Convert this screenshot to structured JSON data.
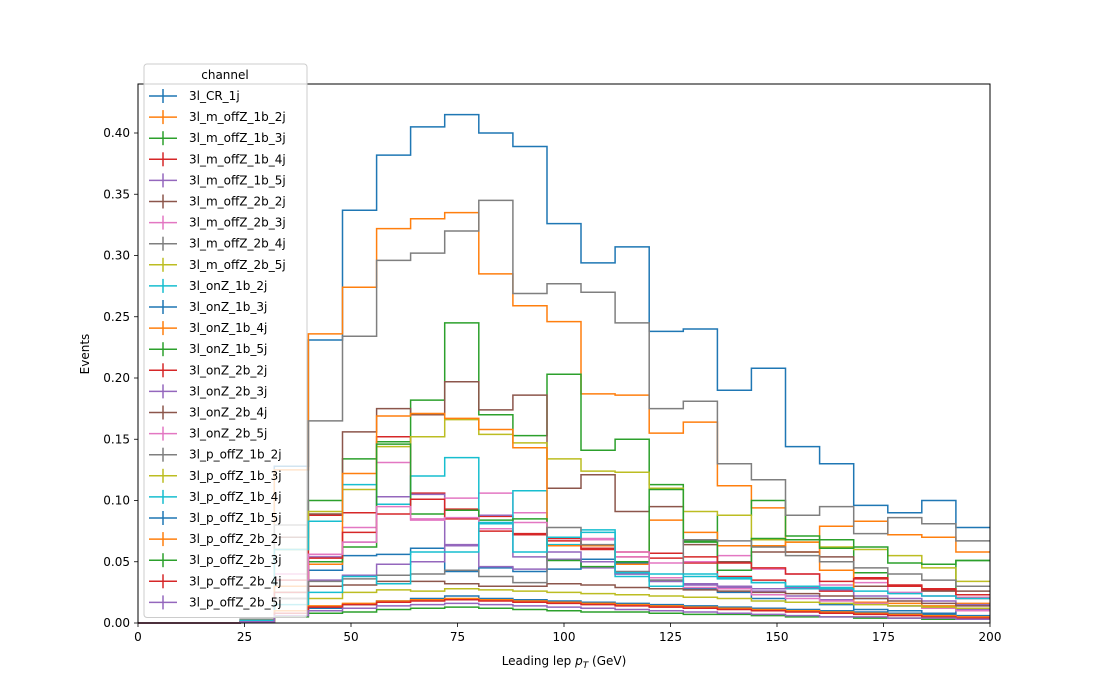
{
  "chart_data": {
    "type": "step",
    "xlabel": "Leading lep",
    "xlabel_var": "p",
    "xlabel_sub": "T",
    "xlabel_unit": "(GeV)",
    "ylabel": "Events",
    "xlim": [
      0,
      200
    ],
    "ylim": [
      0,
      0.44
    ],
    "xticks": [
      0,
      25,
      50,
      75,
      100,
      125,
      150,
      175,
      200
    ],
    "yticks": [
      0.0,
      0.05,
      0.1,
      0.15,
      0.2,
      0.25,
      0.3,
      0.35,
      0.4
    ],
    "ytick_labels": [
      "0.00",
      "0.05",
      "0.10",
      "0.15",
      "0.20",
      "0.25",
      "0.30",
      "0.35",
      "0.40"
    ],
    "bin_edges": [
      0,
      8,
      16,
      24,
      32,
      40,
      48,
      56,
      64,
      72,
      80,
      88,
      96,
      104,
      112,
      120,
      128,
      136,
      144,
      152,
      160,
      168,
      176,
      184,
      192,
      200
    ],
    "legend_title": "channel",
    "legend_position": "upper-left",
    "series": [
      {
        "name": "3l_CR_1j",
        "color": "#1f77b4",
        "values": [
          0,
          0,
          0,
          0.003,
          0.128,
          0.231,
          0.337,
          0.382,
          0.405,
          0.415,
          0.4,
          0.389,
          0.326,
          0.294,
          0.307,
          0.238,
          0.24,
          0.19,
          0.208,
          0.144,
          0.13,
          0.096,
          0.09,
          0.1,
          0.078
        ]
      },
      {
        "name": "3l_m_offZ_1b_2j",
        "color": "#ff7f0e",
        "values": [
          0,
          0,
          0,
          0.002,
          0.125,
          0.236,
          0.274,
          0.322,
          0.33,
          0.335,
          0.285,
          0.259,
          0.246,
          0.187,
          0.186,
          0.155,
          0.164,
          0.112,
          0.094,
          0.058,
          0.079,
          0.083,
          0.072,
          0.07,
          0.058
        ]
      },
      {
        "name": "3l_m_offZ_1b_3j",
        "color": "#2ca02c",
        "values": [
          0,
          0,
          0,
          0.002,
          0.06,
          0.1,
          0.134,
          0.148,
          0.182,
          0.245,
          0.17,
          0.153,
          0.203,
          0.141,
          0.15,
          0.113,
          0.066,
          0.088,
          0.1,
          0.071,
          0.068,
          0.041,
          0.03,
          0.028,
          0.051
        ]
      },
      {
        "name": "3l_m_offZ_1b_4j",
        "color": "#d62728",
        "values": [
          0,
          0,
          0,
          0.001,
          0.035,
          0.088,
          0.09,
          0.152,
          0.106,
          0.093,
          0.087,
          0.072,
          0.067,
          0.06,
          0.054,
          0.053,
          0.049,
          0.038,
          0.035,
          0.03,
          0.026,
          0.037,
          0.031,
          0.027,
          0.023
        ]
      },
      {
        "name": "3l_m_offZ_1b_5j",
        "color": "#9467bd",
        "values": [
          0,
          0,
          0,
          0.001,
          0.03,
          0.054,
          0.066,
          0.103,
          0.105,
          0.064,
          0.088,
          0.054,
          0.052,
          0.045,
          0.04,
          0.035,
          0.031,
          0.029,
          0.026,
          0.022,
          0.019,
          0.016,
          0.014,
          0.012,
          0.011
        ]
      },
      {
        "name": "3l_m_offZ_2b_2j",
        "color": "#8c564b",
        "values": [
          0,
          0,
          0,
          0.003,
          0.07,
          0.089,
          0.156,
          0.175,
          0.17,
          0.197,
          0.174,
          0.186,
          0.11,
          0.121,
          0.091,
          0.095,
          0.064,
          0.05,
          0.058,
          0.058,
          0.054,
          0.03,
          0.03,
          0.026,
          0.026
        ]
      },
      {
        "name": "3l_m_offZ_2b_3j",
        "color": "#e377c2",
        "values": [
          0,
          0,
          0,
          0.002,
          0.04,
          0.056,
          0.078,
          0.131,
          0.085,
          0.102,
          0.106,
          0.09,
          0.069,
          0.069,
          0.054,
          0.049,
          0.05,
          0.055,
          0.044,
          0.04,
          0.031,
          0.033,
          0.025,
          0.022,
          0.021
        ]
      },
      {
        "name": "3l_m_offZ_2b_4j",
        "color": "#7f7f7f",
        "values": [
          0,
          0,
          0,
          0.003,
          0.08,
          0.165,
          0.234,
          0.296,
          0.302,
          0.32,
          0.345,
          0.269,
          0.277,
          0.27,
          0.245,
          0.175,
          0.181,
          0.13,
          0.117,
          0.088,
          0.095,
          0.073,
          0.086,
          0.081,
          0.067
        ]
      },
      {
        "name": "3l_m_offZ_2b_5j",
        "color": "#bcbd22",
        "values": [
          0,
          0,
          0,
          0.002,
          0.06,
          0.091,
          0.109,
          0.144,
          0.152,
          0.166,
          0.154,
          0.147,
          0.134,
          0.124,
          0.123,
          0.11,
          0.091,
          0.088,
          0.068,
          0.066,
          0.062,
          0.06,
          0.055,
          0.045,
          0.034
        ]
      },
      {
        "name": "3l_onZ_1b_2j",
        "color": "#17becf",
        "values": [
          0,
          0,
          0,
          0.002,
          0.06,
          0.083,
          0.113,
          0.097,
          0.12,
          0.135,
          0.081,
          0.108,
          0.064,
          0.076,
          0.038,
          0.04,
          0.038,
          0.037,
          0.033,
          0.028,
          0.029,
          0.02,
          0.014,
          0.013,
          0.015
        ]
      },
      {
        "name": "3l_onZ_1b_3j",
        "color": "#1f77b4",
        "values": [
          0,
          0,
          0,
          0.001,
          0.03,
          0.043,
          0.055,
          0.056,
          0.061,
          0.042,
          0.045,
          0.042,
          0.044,
          0.052,
          0.049,
          0.034,
          0.028,
          0.025,
          0.02,
          0.017,
          0.015,
          0.011,
          0.01,
          0.008,
          0.012
        ]
      },
      {
        "name": "3l_onZ_1b_4j",
        "color": "#ff7f0e",
        "values": [
          0,
          0,
          0,
          0.001,
          0.03,
          0.048,
          0.122,
          0.169,
          0.171,
          0.167,
          0.158,
          0.143,
          0.063,
          0.063,
          0.048,
          0.084,
          0.074,
          0.063,
          0.063,
          0.066,
          0.043,
          0.017,
          0.016,
          0.014,
          0.016
        ]
      },
      {
        "name": "3l_onZ_1b_5j",
        "color": "#2ca02c",
        "values": [
          0,
          0,
          0,
          0.001,
          0.025,
          0.05,
          0.062,
          0.146,
          0.089,
          0.092,
          0.084,
          0.085,
          0.051,
          0.046,
          0.05,
          0.109,
          0.067,
          0.043,
          0.069,
          0.068,
          0.061,
          0.062,
          0.049,
          0.048,
          0.051
        ]
      },
      {
        "name": "3l_onZ_2b_2j",
        "color": "#d62728",
        "values": [
          0,
          0,
          0,
          0.001,
          0.025,
          0.053,
          0.074,
          0.089,
          0.101,
          0.085,
          0.075,
          0.073,
          0.069,
          0.061,
          0.058,
          0.057,
          0.054,
          0.049,
          0.045,
          0.04,
          0.034,
          0.036,
          0.03,
          0.028,
          0.02
        ]
      },
      {
        "name": "3l_onZ_2b_3j",
        "color": "#9467bd",
        "values": [
          0,
          0,
          0,
          0.001,
          0.02,
          0.035,
          0.039,
          0.048,
          0.05,
          0.063,
          0.046,
          0.044,
          0.058,
          0.05,
          0.04,
          0.034,
          0.032,
          0.03,
          0.028,
          0.029,
          0.027,
          0.022,
          0.02,
          0.018,
          0.015
        ]
      },
      {
        "name": "3l_onZ_2b_4j",
        "color": "#8c564b",
        "values": [
          0,
          0,
          0,
          0.001,
          0.02,
          0.03,
          0.031,
          0.034,
          0.034,
          0.032,
          0.03,
          0.03,
          0.032,
          0.031,
          0.029,
          0.028,
          0.027,
          0.026,
          0.025,
          0.024,
          0.022,
          0.02,
          0.018,
          0.016,
          0.014
        ]
      },
      {
        "name": "3l_onZ_2b_5j",
        "color": "#e377c2",
        "values": [
          0,
          0,
          0,
          0.001,
          0.01,
          0.056,
          0.066,
          0.095,
          0.084,
          0.086,
          0.077,
          0.082,
          0.07,
          0.068,
          0.058,
          0.037,
          0.029,
          0.028,
          0.023,
          0.02,
          0.018,
          0.016,
          0.014,
          0.012,
          0.01
        ]
      },
      {
        "name": "3l_p_offZ_1b_2j",
        "color": "#7f7f7f",
        "values": [
          0,
          0,
          0,
          0.001,
          0.02,
          0.034,
          0.036,
          0.039,
          0.04,
          0.043,
          0.038,
          0.033,
          0.078,
          0.064,
          0.042,
          0.035,
          0.068,
          0.067,
          0.062,
          0.055,
          0.05,
          0.045,
          0.04,
          0.035,
          0.03
        ]
      },
      {
        "name": "3l_p_offZ_1b_3j",
        "color": "#bcbd22",
        "values": [
          0,
          0,
          0,
          0.001,
          0.01,
          0.02,
          0.025,
          0.027,
          0.026,
          0.028,
          0.027,
          0.026,
          0.025,
          0.024,
          0.023,
          0.022,
          0.021,
          0.02,
          0.018,
          0.017,
          0.016,
          0.015,
          0.014,
          0.013,
          0.012
        ]
      },
      {
        "name": "3l_p_offZ_1b_4j",
        "color": "#17becf",
        "values": [
          0,
          0,
          0,
          0.001,
          0.015,
          0.025,
          0.038,
          0.032,
          0.058,
          0.058,
          0.082,
          0.058,
          0.07,
          0.074,
          0.041,
          0.03,
          0.04,
          0.036,
          0.033,
          0.03,
          0.028,
          0.026,
          0.024,
          0.022,
          0.02
        ]
      },
      {
        "name": "3l_p_offZ_1b_5j",
        "color": "#1f77b4",
        "values": [
          0,
          0,
          0,
          0.001,
          0.008,
          0.012,
          0.015,
          0.018,
          0.02,
          0.022,
          0.02,
          0.019,
          0.018,
          0.017,
          0.016,
          0.015,
          0.014,
          0.013,
          0.012,
          0.011,
          0.01,
          0.009,
          0.008,
          0.007,
          0.006
        ]
      },
      {
        "name": "3l_p_offZ_2b_2j",
        "color": "#ff7f0e",
        "values": [
          0,
          0,
          0,
          0.001,
          0.01,
          0.014,
          0.016,
          0.018,
          0.019,
          0.02,
          0.019,
          0.018,
          0.017,
          0.016,
          0.015,
          0.014,
          0.013,
          0.012,
          0.011,
          0.01,
          0.009,
          0.008,
          0.007,
          0.006,
          0.005
        ]
      },
      {
        "name": "3l_p_offZ_2b_3j",
        "color": "#2ca02c",
        "values": [
          0,
          0,
          0,
          0.001,
          0.005,
          0.008,
          0.009,
          0.011,
          0.012,
          0.013,
          0.012,
          0.011,
          0.01,
          0.009,
          0.009,
          0.008,
          0.007,
          0.007,
          0.006,
          0.005,
          0.005,
          0.004,
          0.004,
          0.003,
          0.003
        ]
      },
      {
        "name": "3l_p_offZ_2b_4j",
        "color": "#d62728",
        "values": [
          0,
          0,
          0,
          0.001,
          0.008,
          0.013,
          0.015,
          0.017,
          0.018,
          0.019,
          0.018,
          0.017,
          0.016,
          0.015,
          0.014,
          0.013,
          0.012,
          0.011,
          0.01,
          0.009,
          0.008,
          0.007,
          0.006,
          0.005,
          0.004
        ]
      },
      {
        "name": "3l_p_offZ_2b_5j",
        "color": "#9467bd",
        "values": [
          0,
          0,
          0,
          0.001,
          0.006,
          0.01,
          0.012,
          0.014,
          0.015,
          0.016,
          0.015,
          0.014,
          0.013,
          0.012,
          0.011,
          0.01,
          0.009,
          0.008,
          0.007,
          0.006,
          0.005,
          0.005,
          0.004,
          0.004,
          0.003
        ]
      }
    ]
  }
}
